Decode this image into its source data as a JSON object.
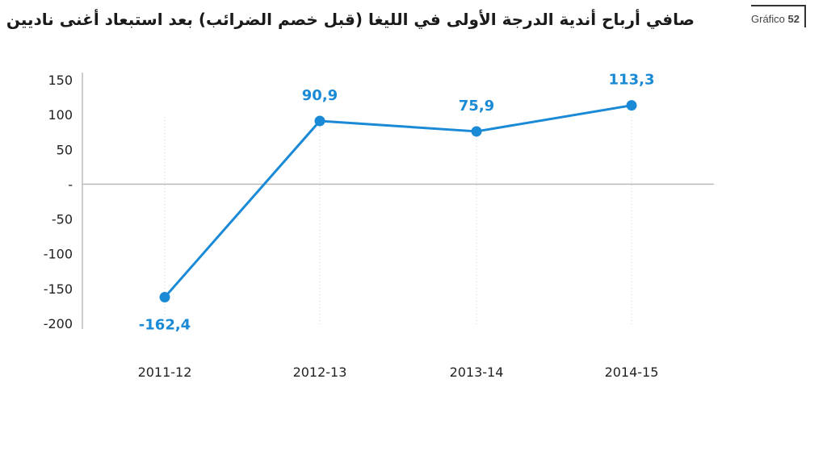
{
  "header": {
    "title": "صافي أرباح أندية الدرجة الأولى في الليغا (قبل خصم الضرائب) بعد استبعاد أغنى ناديين",
    "figure_word": "Gráfico",
    "figure_number": "52"
  },
  "chart_data": {
    "type": "line",
    "title": "صافي أرباح أندية الدرجة الأولى في الليغا (قبل خصم الضرائب) بعد استبعاد أغنى ناديين",
    "categories": [
      "2011-12",
      "2012-13",
      "2013-14",
      "2014-15"
    ],
    "series": [
      {
        "values": [
          -162.4,
          90.9,
          75.9,
          113.3
        ],
        "labels": [
          "-162,4",
          "90,9",
          "75,9",
          "113,3"
        ],
        "color": "#1a8ad6"
      }
    ],
    "yticks": [
      150,
      100,
      50,
      0,
      -50,
      -100,
      -150,
      -200
    ],
    "ytick_labels": [
      "150",
      "100",
      "50",
      "-",
      "-50",
      "-100",
      "-150",
      "-200"
    ],
    "ylim": [
      -200,
      150
    ],
    "xlabel": "",
    "ylabel": "",
    "grid": "vertical-dotted",
    "colors": {
      "line": "#1a8ad6",
      "axis": "#bbbbbb",
      "grid": "#d0d0d0"
    }
  }
}
